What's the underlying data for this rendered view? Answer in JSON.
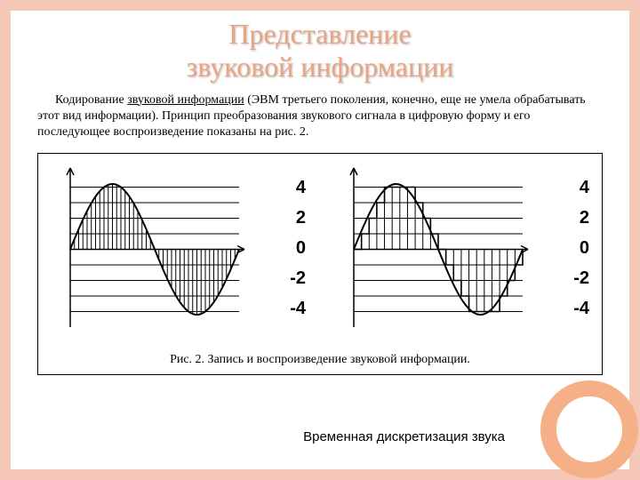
{
  "title_line1": "Представление",
  "title_line2": "звуковой информации",
  "paragraph": {
    "lead": "Кодирование ",
    "underlined": "звуковой информации",
    "rest": " (ЭВМ третьего поколения, конечно, еще не умела обрабатывать этот вид информации). Принцип преобразования звукового сигнала в цифровую форму и его последующее воспроизведение показаны на рис. 2."
  },
  "figure": {
    "caption": "Рис. 2. Запись и воспроизведение звуковой информации.",
    "y_labels": [
      "4",
      "2",
      "0",
      "-2",
      "-4"
    ],
    "y_values": [
      4,
      2,
      0,
      -2,
      -4
    ],
    "charts": {
      "left": {
        "type": "wave-quantized",
        "mode": "vertical-bars",
        "x_range": [
          0,
          200
        ],
        "y_range": [
          -5,
          5
        ],
        "hlines_color": "#000000",
        "axis_color": "#000000",
        "wave_color": "#000000",
        "bar_width": 1,
        "grid_lines_y": [
          4,
          3,
          2,
          1,
          -1,
          -2,
          -3,
          -4
        ],
        "sine": {
          "amplitude": 4.2,
          "period": 200,
          "phase": 0,
          "samples": 40
        }
      },
      "right": {
        "type": "wave-quantized",
        "mode": "step",
        "x_range": [
          0,
          200
        ],
        "y_range": [
          -5,
          5
        ],
        "hlines_color": "#000000",
        "axis_color": "#000000",
        "wave_color": "#000000",
        "grid_lines_y": [
          4,
          3,
          2,
          1,
          -1,
          -2,
          -3,
          -4
        ],
        "sine": {
          "amplitude": 4.2,
          "period": 200,
          "phase": 0,
          "samples": 22
        }
      }
    }
  },
  "footer_label": "Временная дискретизация звука",
  "colors": {
    "frame": "#f4c7b8",
    "title": "#e8a585",
    "circle_ring": "#f5b087",
    "background": "#ffffff",
    "text": "#000000"
  },
  "typography": {
    "title_fontsize": 32,
    "body_fontsize": 14,
    "ylabel_fontsize": 20,
    "caption_fontsize": 14
  }
}
